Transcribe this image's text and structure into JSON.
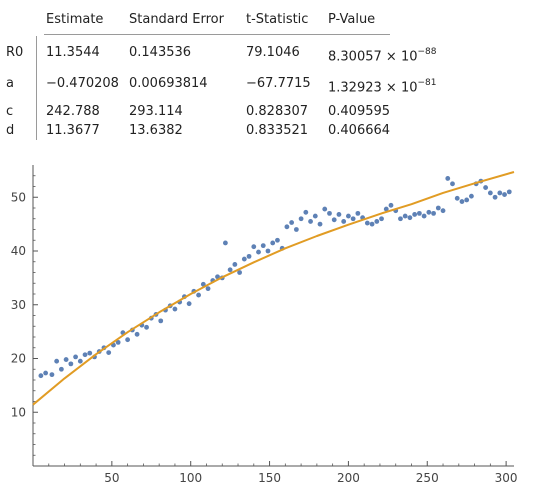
{
  "table": {
    "headers": [
      "Estimate",
      "Standard Error",
      "t-Statistic",
      "P-Value"
    ],
    "rows": [
      {
        "param": "R0",
        "estimate": "11.3544",
        "std_error": "0.143536",
        "t_stat": "79.1046",
        "p_mantissa": "8.30057",
        "p_times": "×",
        "p_base": "10",
        "p_exp": "−88"
      },
      {
        "param": "a",
        "estimate": "−0.470208",
        "std_error": "0.00693814",
        "t_stat": "−67.7715",
        "p_mantissa": "1.32923",
        "p_times": "×",
        "p_base": "10",
        "p_exp": "−81"
      },
      {
        "param": "c",
        "estimate": "242.788",
        "std_error": "293.114",
        "t_stat": "0.828307",
        "p_value": "0.409595"
      },
      {
        "param": "d",
        "estimate": "11.3677",
        "std_error": "13.6382",
        "t_stat": "0.833521",
        "p_value": "0.406664"
      }
    ]
  },
  "colors": {
    "points": "#5e81b5",
    "fit_line": "#e19c24",
    "axis": "#555555"
  },
  "chart_data": {
    "type": "scatter",
    "xlim": [
      0,
      305
    ],
    "ylim": [
      0,
      56
    ],
    "xticks": [
      50,
      100,
      150,
      200,
      250,
      300
    ],
    "yticks": [
      10,
      20,
      30,
      40,
      50
    ],
    "points": [
      [
        5,
        16.8
      ],
      [
        8,
        17.3
      ],
      [
        12,
        17.0
      ],
      [
        15,
        19.5
      ],
      [
        18,
        18.0
      ],
      [
        21,
        19.8
      ],
      [
        24,
        19.0
      ],
      [
        27,
        20.3
      ],
      [
        30,
        19.5
      ],
      [
        33,
        20.7
      ],
      [
        36,
        21.0
      ],
      [
        39,
        20.3
      ],
      [
        42,
        21.3
      ],
      [
        45,
        22.0
      ],
      [
        48,
        21.1
      ],
      [
        51,
        22.5
      ],
      [
        54,
        23.0
      ],
      [
        57,
        24.8
      ],
      [
        60,
        23.5
      ],
      [
        63,
        25.3
      ],
      [
        66,
        24.5
      ],
      [
        69,
        26.2
      ],
      [
        72,
        25.8
      ],
      [
        75,
        27.5
      ],
      [
        78,
        28.2
      ],
      [
        81,
        27.0
      ],
      [
        84,
        29.0
      ],
      [
        87,
        29.8
      ],
      [
        90,
        29.2
      ],
      [
        93,
        30.5
      ],
      [
        96,
        31.5
      ],
      [
        99,
        30.2
      ],
      [
        102,
        32.5
      ],
      [
        105,
        31.8
      ],
      [
        108,
        33.8
      ],
      [
        111,
        33.0
      ],
      [
        114,
        34.5
      ],
      [
        117,
        35.2
      ],
      [
        120,
        35.0
      ],
      [
        122,
        41.5
      ],
      [
        125,
        36.5
      ],
      [
        128,
        37.5
      ],
      [
        131,
        36.0
      ],
      [
        134,
        38.5
      ],
      [
        137,
        39.0
      ],
      [
        140,
        40.8
      ],
      [
        143,
        39.8
      ],
      [
        146,
        41.0
      ],
      [
        149,
        40.0
      ],
      [
        152,
        41.5
      ],
      [
        155,
        42.0
      ],
      [
        158,
        40.5
      ],
      [
        161,
        44.5
      ],
      [
        164,
        45.3
      ],
      [
        167,
        44.0
      ],
      [
        170,
        46.0
      ],
      [
        173,
        47.2
      ],
      [
        176,
        45.5
      ],
      [
        179,
        46.5
      ],
      [
        182,
        45.0
      ],
      [
        185,
        47.8
      ],
      [
        188,
        47.0
      ],
      [
        191,
        45.8
      ],
      [
        194,
        46.8
      ],
      [
        197,
        45.5
      ],
      [
        200,
        46.5
      ],
      [
        203,
        46.0
      ],
      [
        206,
        47.0
      ],
      [
        209,
        46.2
      ],
      [
        212,
        45.2
      ],
      [
        215,
        45.0
      ],
      [
        218,
        45.5
      ],
      [
        221,
        46.0
      ],
      [
        224,
        47.8
      ],
      [
        227,
        48.5
      ],
      [
        230,
        47.5
      ],
      [
        233,
        46.0
      ],
      [
        236,
        46.5
      ],
      [
        239,
        46.2
      ],
      [
        242,
        46.8
      ],
      [
        245,
        47.0
      ],
      [
        248,
        46.5
      ],
      [
        251,
        47.2
      ],
      [
        254,
        47.0
      ],
      [
        257,
        48.0
      ],
      [
        260,
        47.5
      ],
      [
        263,
        53.5
      ],
      [
        266,
        52.5
      ],
      [
        269,
        49.8
      ],
      [
        272,
        49.2
      ],
      [
        275,
        49.5
      ],
      [
        278,
        50.2
      ],
      [
        281,
        52.5
      ],
      [
        284,
        53.0
      ],
      [
        287,
        51.8
      ],
      [
        290,
        50.8
      ],
      [
        293,
        50.0
      ],
      [
        296,
        50.8
      ],
      [
        299,
        50.5
      ],
      [
        302,
        51.0
      ]
    ],
    "fit": {
      "x": [
        0,
        20,
        40,
        60,
        80,
        100,
        120,
        140,
        160,
        180,
        200,
        220,
        240,
        260,
        280,
        305
      ],
      "y": [
        11.4,
        16.3,
        20.8,
        24.9,
        28.6,
        32.0,
        35.1,
        37.9,
        40.5,
        42.8,
        44.9,
        46.9,
        48.7,
        50.8,
        52.6,
        54.7
      ]
    }
  }
}
